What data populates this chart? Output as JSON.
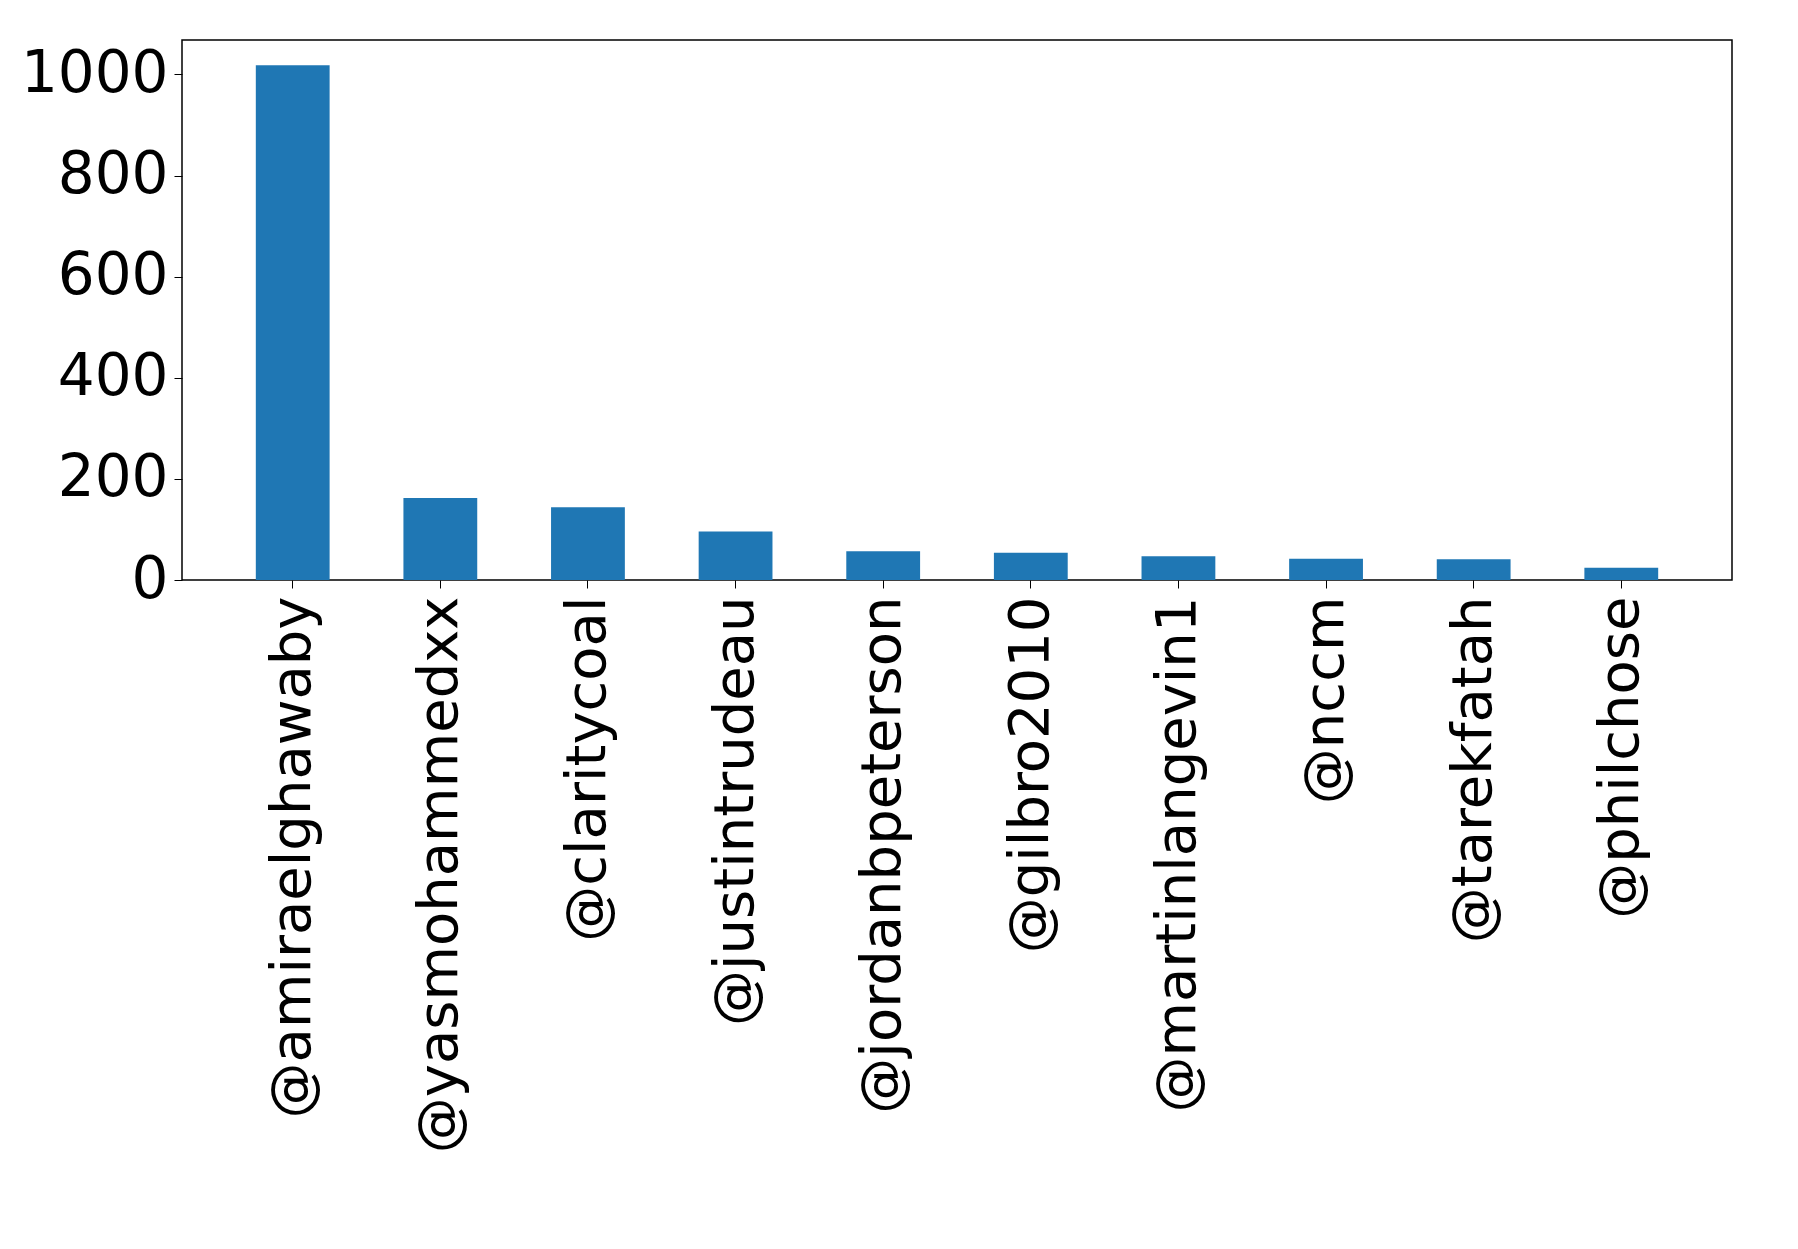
{
  "chart_data": {
    "type": "bar",
    "categories": [
      "@amiraelghawaby",
      "@yasmohammedxx",
      "@claritycoal",
      "@justintrudeau",
      "@jordanbpeterson",
      "@gilbro2010",
      "@martinlangevin1",
      "@nccm",
      "@tarekfatah",
      "@philchose"
    ],
    "values": [
      1018,
      162,
      144,
      96,
      57,
      54,
      47,
      42,
      41,
      24
    ],
    "color": "#1f77b4",
    "ylim": [
      0,
      1068
    ],
    "yticks": [
      0,
      200,
      400,
      600,
      800,
      1000
    ],
    "grid": false
  }
}
